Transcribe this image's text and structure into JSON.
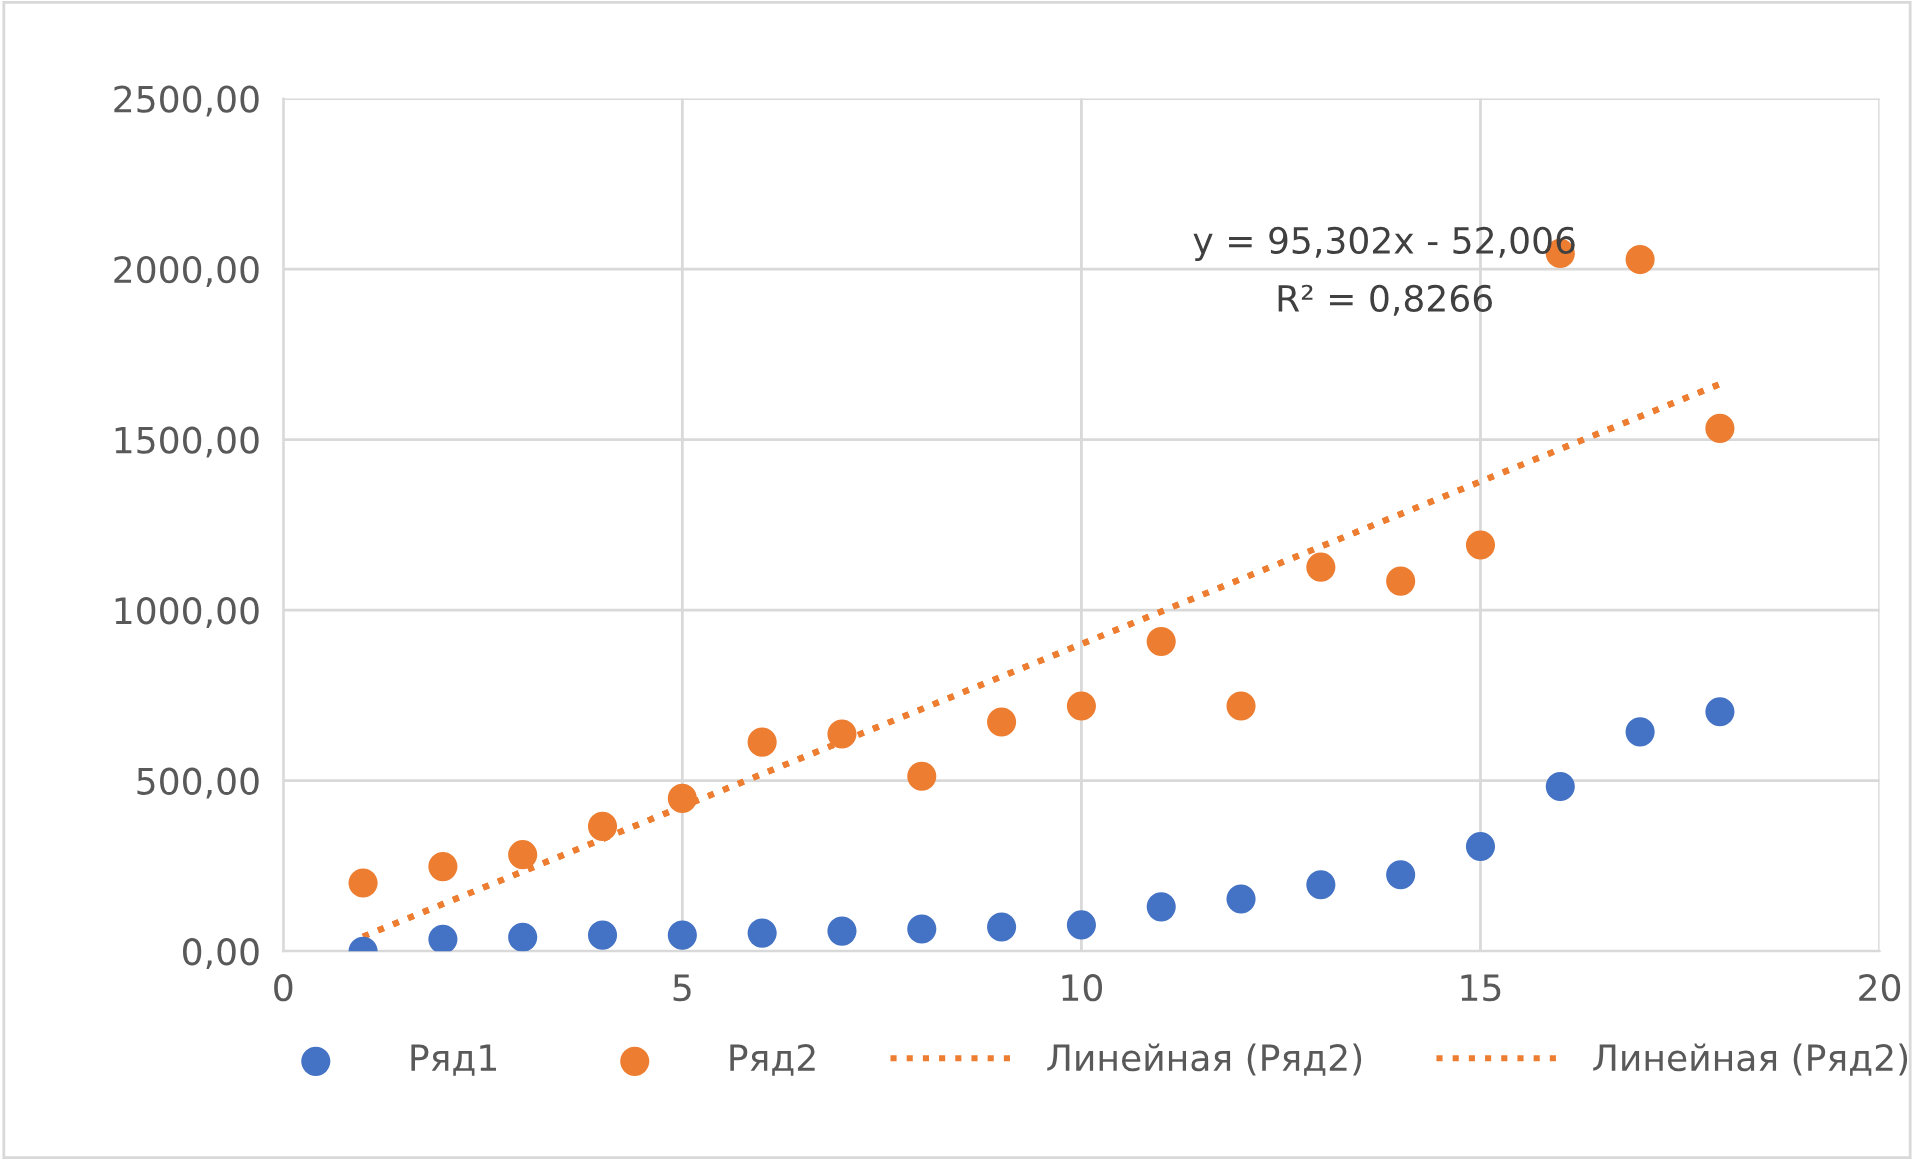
{
  "chart_data": {
    "type": "scatter",
    "xlim": [
      0,
      20
    ],
    "xticks": [
      0,
      5,
      10,
      15,
      20
    ],
    "ylim": [
      0,
      2500
    ],
    "yticks": [
      {
        "value": 0,
        "label": "0,00"
      },
      {
        "value": 500,
        "label": "500,00"
      },
      {
        "value": 1000,
        "label": "1000,00"
      },
      {
        "value": 1500,
        "label": "1500,00"
      },
      {
        "value": 2000,
        "label": "2000,00"
      },
      {
        "value": 2500,
        "label": "2500,00"
      }
    ],
    "grid": true,
    "legend": "bottom",
    "series": [
      {
        "name": "Ряд1",
        "marker": "circle",
        "color": "#4472c4",
        "x": [
          1,
          2,
          3,
          4,
          5,
          6,
          7,
          8,
          9,
          10,
          11,
          12,
          13,
          14,
          15,
          16,
          17,
          18
        ],
        "values": [
          0,
          35,
          41,
          47,
          47,
          53,
          59,
          65,
          71,
          77,
          130,
          153,
          195,
          224,
          307,
          483,
          643,
          702
        ]
      },
      {
        "name": "Ряд2",
        "marker": "circle",
        "color": "#ed7d31",
        "x": [
          1,
          2,
          3,
          4,
          5,
          6,
          7,
          8,
          9,
          10,
          11,
          12,
          13,
          14,
          15,
          16,
          17,
          18
        ],
        "values": [
          200,
          248,
          283,
          366,
          448,
          613,
          637,
          513,
          672,
          719,
          908,
          719,
          1126,
          1085,
          1191,
          2046,
          2028,
          1533
        ]
      },
      {
        "name": "Линейная (Ряд2)",
        "type": "line",
        "line_style": "dotted",
        "color": "#ed7d31",
        "x": [
          1,
          18
        ],
        "values": [
          43,
          1663
        ]
      },
      {
        "name": "Линейная (Ряд2)",
        "type": "line",
        "line_style": "dotted",
        "color": "#ed7d31",
        "x": [
          1,
          18
        ],
        "values": [
          43,
          1663
        ]
      }
    ],
    "annotations": [
      "y = 95,302x - 52,006",
      "R² = 0,8266"
    ]
  }
}
